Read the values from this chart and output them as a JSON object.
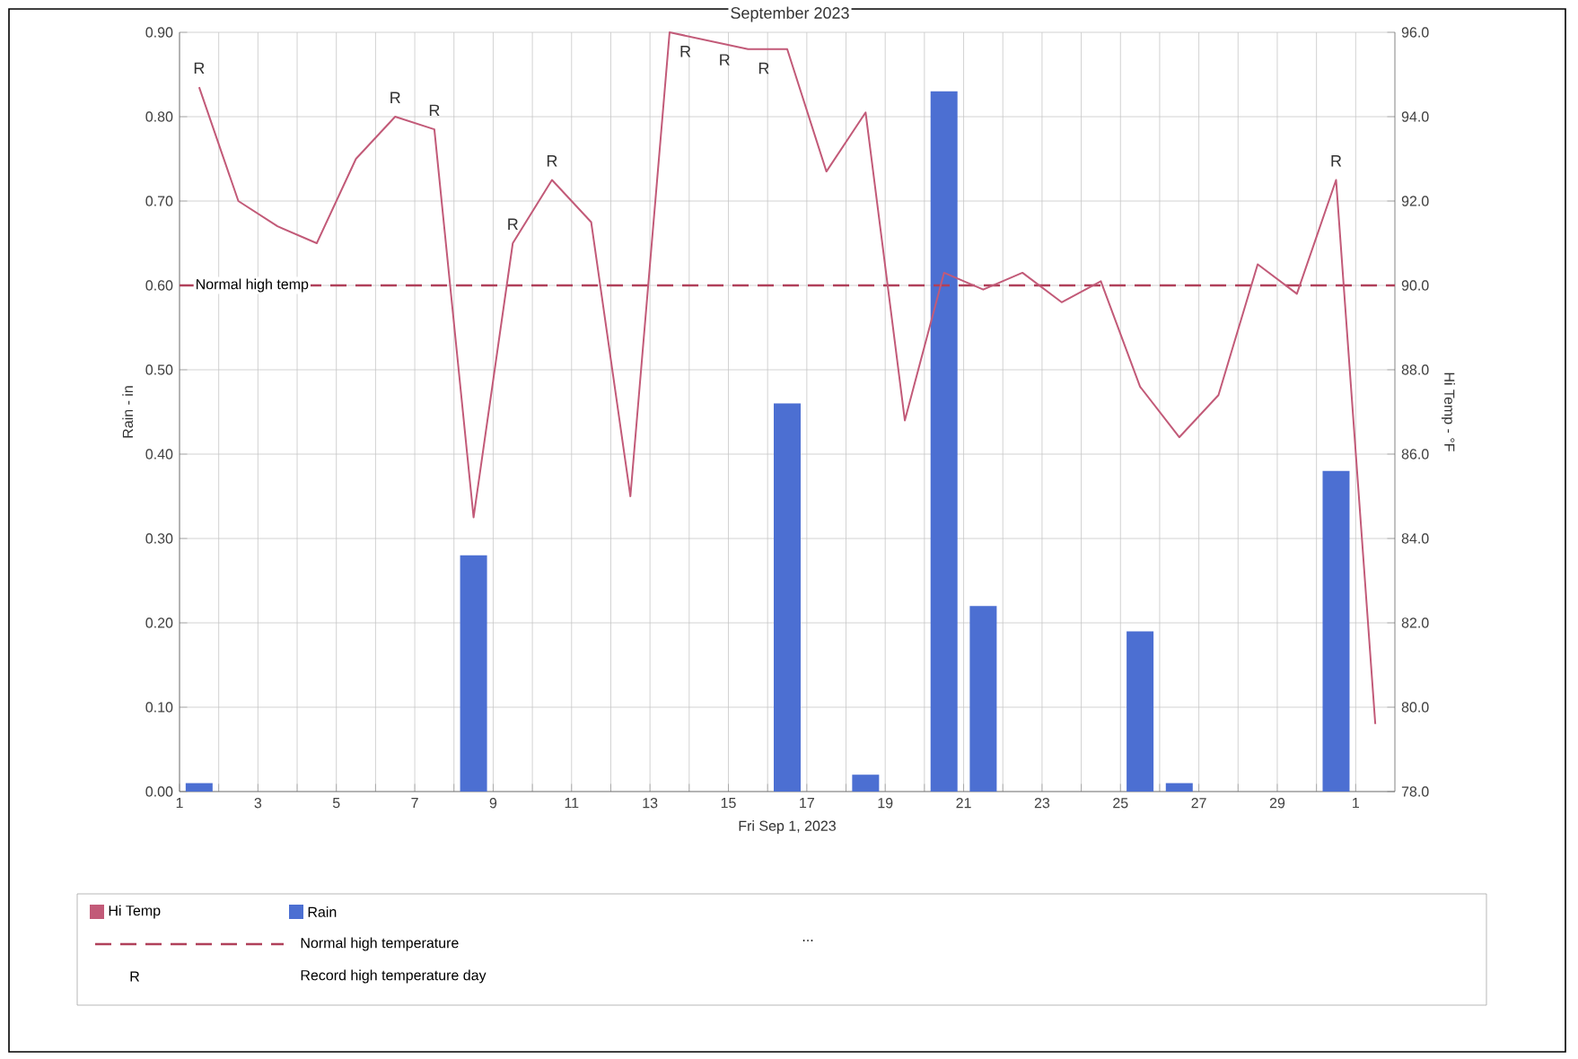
{
  "chart_data": {
    "type": "line",
    "title": "September 2023",
    "xlabel": "Fri Sep 1, 2023",
    "ylabel": "Rain - in",
    "y2label": "Hi Temp - °F",
    "xlim": [
      "2023-09-01",
      "2023-10-02"
    ],
    "xticks": [
      {
        "value": "2023-09-01",
        "label": "1"
      },
      {
        "value": "2023-09-02",
        "label": null
      },
      {
        "value": "2023-09-03",
        "label": "3"
      },
      {
        "value": "2023-09-04",
        "label": null
      },
      {
        "value": "2023-09-05",
        "label": "5"
      },
      {
        "value": "2023-09-06",
        "label": null
      },
      {
        "value": "2023-09-07",
        "label": "7"
      },
      {
        "value": "2023-09-08",
        "label": null
      },
      {
        "value": "2023-09-09",
        "label": "9"
      },
      {
        "value": "2023-09-10",
        "label": null
      },
      {
        "value": "2023-09-11",
        "label": "11"
      },
      {
        "value": "2023-09-12",
        "label": null
      },
      {
        "value": "2023-09-13",
        "label": "13"
      },
      {
        "value": "2023-09-14",
        "label": null
      },
      {
        "value": "2023-09-15",
        "label": "15"
      },
      {
        "value": "2023-09-16",
        "label": null
      },
      {
        "value": "2023-09-17",
        "label": "17"
      },
      {
        "value": "2023-09-18",
        "label": null
      },
      {
        "value": "2023-09-19",
        "label": "19"
      },
      {
        "value": "2023-09-20",
        "label": null
      },
      {
        "value": "2023-09-21",
        "label": "21"
      },
      {
        "value": "2023-09-22",
        "label": null
      },
      {
        "value": "2023-09-23",
        "label": "23"
      },
      {
        "value": "2023-09-24",
        "label": null
      },
      {
        "value": "2023-09-25",
        "label": "25"
      },
      {
        "value": "2023-09-26",
        "label": null
      },
      {
        "value": "2023-09-27",
        "label": "27"
      },
      {
        "value": "2023-09-28",
        "label": null
      },
      {
        "value": "2023-09-29",
        "label": "29"
      },
      {
        "value": "2023-09-30",
        "label": null
      },
      {
        "value": "2023-10-01",
        "label": "1"
      }
    ],
    "ylim": [
      0,
      0.9
    ],
    "yticks": [
      {
        "value": 0,
        "label": "0.00"
      },
      {
        "value": 0.1,
        "label": "0.10"
      },
      {
        "value": 0.2,
        "label": "0.20"
      },
      {
        "value": 0.3,
        "label": "0.30"
      },
      {
        "value": 0.4,
        "label": "0.40"
      },
      {
        "value": 0.5,
        "label": "0.50"
      },
      {
        "value": 0.6,
        "label": "0.60"
      },
      {
        "value": 0.7,
        "label": "0.70"
      },
      {
        "value": 0.8,
        "label": "0.80"
      },
      {
        "value": 0.9,
        "label": "0.90"
      }
    ],
    "y2lim": [
      78,
      96
    ],
    "y2ticks": [
      {
        "value": 78,
        "label": "78.0"
      },
      {
        "value": 80,
        "label": "80.0"
      },
      {
        "value": 82,
        "label": "82.0"
      },
      {
        "value": 84,
        "label": "84.0"
      },
      {
        "value": 86,
        "label": "86.0"
      },
      {
        "value": 88,
        "label": "88.0"
      },
      {
        "value": 90,
        "label": "90.0"
      },
      {
        "value": 92,
        "label": "92.0"
      },
      {
        "value": 94,
        "label": "94.0"
      },
      {
        "value": 96,
        "label": "96.0"
      }
    ],
    "series": [
      {
        "name": "Hi Temp",
        "axis": "y2",
        "color": "#c25a78",
        "x": [
          "2023-09-01T12:00",
          "2023-09-02T12:00",
          "2023-09-03T12:00",
          "2023-09-04T12:00",
          "2023-09-05T12:00",
          "2023-09-06T12:00",
          "2023-09-07T12:00",
          "2023-09-08T12:00",
          "2023-09-09T12:00",
          "2023-09-10T12:00",
          "2023-09-11T12:00",
          "2023-09-12T12:00",
          "2023-09-13T12:00",
          "2023-09-14T12:00",
          "2023-09-15T12:00",
          "2023-09-16T12:00",
          "2023-09-17T12:00",
          "2023-09-18T12:00",
          "2023-09-19T12:00",
          "2023-09-20T12:00",
          "2023-09-21T12:00",
          "2023-09-22T12:00",
          "2023-09-23T12:00",
          "2023-09-24T12:00",
          "2023-09-25T12:00",
          "2023-09-26T12:00",
          "2023-09-27T12:00",
          "2023-09-28T12:00",
          "2023-09-29T12:00",
          "2023-09-30T12:00",
          "2023-10-01T12:00"
        ],
        "values": [
          94.7,
          92.0,
          91.4,
          91.0,
          93.0,
          94.0,
          93.7,
          84.5,
          91.0,
          92.5,
          91.5,
          85.0,
          96.0,
          95.8,
          95.6,
          95.6,
          92.7,
          94.1,
          86.8,
          90.3,
          89.9,
          90.3,
          89.6,
          90.1,
          87.6,
          86.4,
          87.4,
          90.5,
          89.8,
          92.5,
          79.6
        ],
        "value_labels": [
          "R",
          null,
          null,
          null,
          null,
          "R",
          "R",
          null,
          "R",
          "R",
          null,
          null,
          "R",
          "R",
          "R",
          null,
          null,
          null,
          null,
          null,
          null,
          null,
          null,
          null,
          null,
          null,
          null,
          null,
          null,
          "R",
          null
        ]
      },
      {
        "name": "Rain",
        "type": "bar",
        "color": "#4c6fd2",
        "x": [
          "2023-09-01T12:00",
          "2023-09-08T12:00",
          "2023-09-16T12:00",
          "2023-09-18T12:00",
          "2023-09-20T12:00",
          "2023-09-21T12:00",
          "2023-09-25T12:00",
          "2023-09-26T12:00",
          "2023-09-30T12:00"
        ],
        "values": [
          0.01,
          0.28,
          0.46,
          0.02,
          0.83,
          0.22,
          0.19,
          0.01,
          0.38
        ]
      }
    ],
    "ref_lines": [
      {
        "axis": "y2",
        "value": 90,
        "label": "Normal high temp",
        "color": "#b0405a",
        "line_style": "dashed"
      }
    ],
    "annotations": [
      "Normal high temperature",
      "...",
      "R",
      "Record high temperature day"
    ],
    "grid": true,
    "legend": "bottom"
  }
}
